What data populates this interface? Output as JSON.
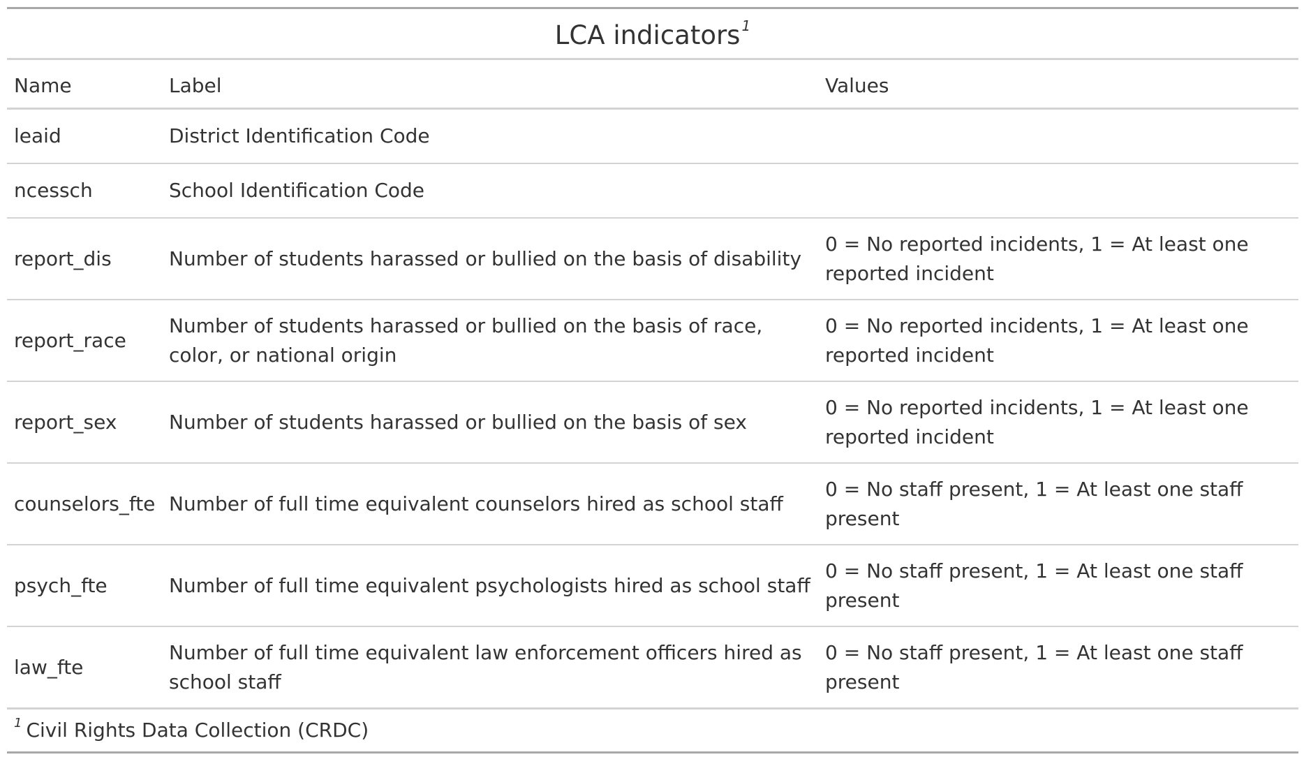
{
  "table": {
    "title": "LCA indicators",
    "title_footnote_mark": "1",
    "columns": [
      "Name",
      "Label",
      "Values"
    ],
    "rows": [
      {
        "name": "leaid",
        "label": "District Identification Code",
        "values": ""
      },
      {
        "name": "ncessch",
        "label": "School Identification Code",
        "values": ""
      },
      {
        "name": "report_dis",
        "label": "Number of students harassed or bullied on the basis of disability",
        "values": "0 = No reported incidents, 1 = At least one reported incident"
      },
      {
        "name": "report_race",
        "label": "Number of students harassed or bullied on the basis of race, color, or national origin",
        "values": "0 = No reported incidents, 1 = At least one reported incident"
      },
      {
        "name": "report_sex",
        "label": "Number of students harassed or bullied on the basis of sex",
        "values": "0 = No reported incidents, 1 = At least one reported incident"
      },
      {
        "name": "counselors_fte",
        "label": "Number of full time equivalent counselors hired as school staff",
        "values": "0 = No staff present, 1 = At least one staff present"
      },
      {
        "name": "psych_fte",
        "label": "Number of full time equivalent psychologists hired as school staff",
        "values": "0 = No staff present, 1 = At least one staff present"
      },
      {
        "name": "law_fte",
        "label": "Number of full time equivalent law enforcement officers hired as school staff",
        "values": "0 = No staff present, 1 = At least one staff present"
      }
    ],
    "footnote": {
      "mark": "1",
      "text": "Civil Rights Data Collection (CRDC)"
    }
  }
}
